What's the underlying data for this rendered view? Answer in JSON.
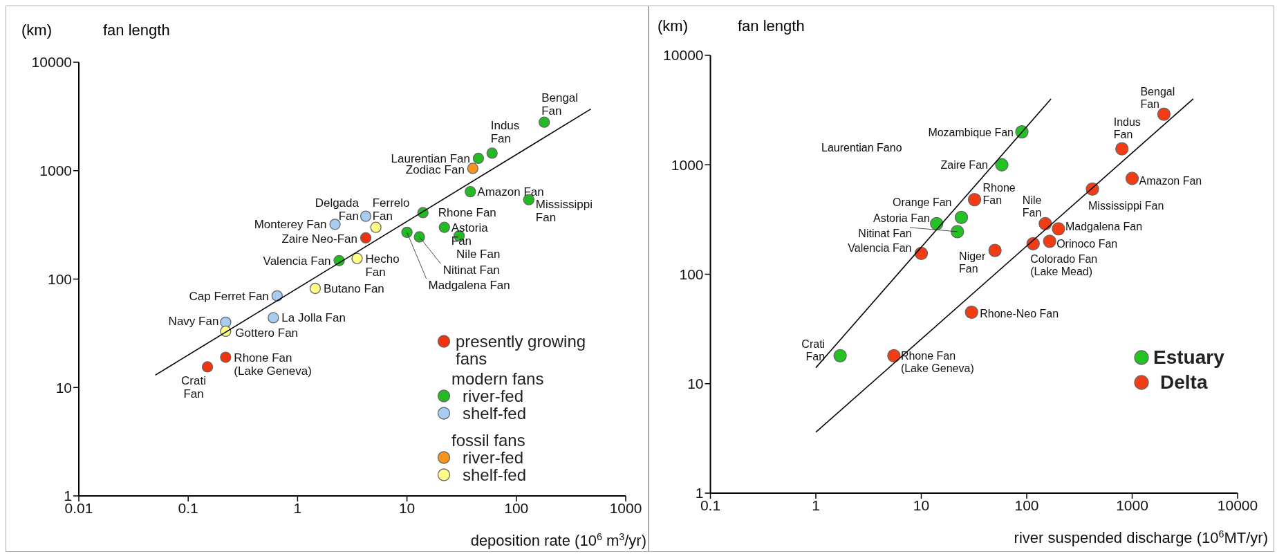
{
  "chart_data": [
    {
      "type": "scatter",
      "title": "fan length",
      "ylabel": "(km)",
      "xlabel": "deposition rate (10$^{6}$ m$^{3}$/yr)",
      "log": "xy",
      "xlim": [
        0.01,
        1000
      ],
      "ylim": [
        1,
        10000
      ],
      "xticks": [
        0.01,
        0.1,
        1,
        10,
        100,
        1000
      ],
      "yticks": [
        1,
        10,
        100,
        1000,
        10000
      ],
      "marker": "circle",
      "legend": "bottom right",
      "series": [
        {
          "name": "presently growing fans",
          "color": "#ee3311",
          "x": [
            4.2,
            0.22,
            0.15
          ],
          "values": [
            240,
            19,
            15.5
          ]
        },
        {
          "name": "river-fed",
          "color": "#22bb22",
          "x": [
            180,
            60,
            45,
            38,
            130,
            14,
            22,
            30,
            10,
            13,
            2.4
          ],
          "values": [
            2800,
            1450,
            1300,
            640,
            540,
            410,
            300,
            250,
            270,
            245,
            148
          ]
        },
        {
          "name": "shelf-fed",
          "color": "#a8cdf0",
          "x": [
            4.2,
            2.2,
            0.65,
            0.22,
            0.6
          ],
          "values": [
            380,
            320,
            70,
            40,
            44
          ]
        },
        {
          "name": "river-fed",
          "color": "#f7941d",
          "x": [
            40
          ],
          "values": [
            1050
          ]
        },
        {
          "name": "shelf-fed",
          "color": "#ffff88",
          "x": [
            5.2,
            3.5,
            1.45,
            0.22
          ],
          "values": [
            300,
            155,
            82,
            33
          ]
        },
        {
          "type": "line",
          "marker": "none",
          "color": "#000000",
          "x": [
            0.05,
            480
          ],
          "values": [
            13,
            3700
          ]
        }
      ],
      "annotations": [
        "modern fans",
        "fossil fans",
        {
          "text": "Bengal\nFan",
          "x": 180,
          "y": 2800
        },
        {
          "text": "Indus\nFan",
          "x": 60,
          "y": 1450
        },
        {
          "text": "Laurentian Fan",
          "x": 45,
          "y": 1300
        },
        {
          "text": "Zodiac Fan",
          "x": 40,
          "y": 1050
        },
        {
          "text": "Amazon Fan",
          "x": 38,
          "y": 640
        },
        {
          "text": "Mississippi\nFan",
          "x": 130,
          "y": 540
        },
        {
          "text": "Rhone Fan",
          "x": 14,
          "y": 410
        },
        {
          "text": "Astoria\nFan",
          "x": 22,
          "y": 300
        },
        {
          "text": "Nile Fan",
          "x": 30,
          "y": 250
        },
        {
          "text": "Madgalena Fan",
          "x": 10,
          "y": 270
        },
        {
          "text": "Nitinat Fan",
          "x": 13,
          "y": 245
        },
        {
          "text": "Delgada\nFan",
          "x": 4.2,
          "y": 380
        },
        {
          "text": "Ferrelo\nFan",
          "x": 5.2,
          "y": 300
        },
        {
          "text": "Monterey Fan",
          "x": 2.2,
          "y": 320
        },
        {
          "text": "Zaire Neo-Fan",
          "x": 4.2,
          "y": 240
        },
        {
          "text": "Valencia Fan",
          "x": 2.4,
          "y": 148
        },
        {
          "text": "Hecho\nFan",
          "x": 3.5,
          "y": 155
        },
        {
          "text": "Cap Ferret Fan",
          "x": 0.65,
          "y": 70
        },
        {
          "text": "Butano Fan",
          "x": 1.45,
          "y": 82
        },
        {
          "text": "Navy Fan",
          "x": 0.22,
          "y": 40
        },
        {
          "text": "La Jolla Fan",
          "x": 0.6,
          "y": 44
        },
        {
          "text": "Gottero Fan",
          "x": 0.22,
          "y": 33
        },
        {
          "text": "Rhone Fan\n(Lake Geneva)",
          "x": 0.22,
          "y": 19
        },
        {
          "text": "Crati\nFan",
          "x": 0.15,
          "y": 15.5
        }
      ]
    },
    {
      "type": "scatter",
      "title": "fan length",
      "ylabel": "(km)",
      "xlabel": "river suspended discharge (10$^{6}$MT/yr)",
      "log": "xy",
      "xlim": [
        0.1,
        10000
      ],
      "ylim": [
        1,
        10000
      ],
      "xticks": [
        0.1,
        1,
        10,
        100,
        1000,
        10000
      ],
      "yticks": [
        1,
        10,
        100,
        1000,
        10000
      ],
      "marker": "circle",
      "legend": "right",
      "series": [
        {
          "name": "Estuary",
          "color": "#22c322",
          "x": [
            90,
            58,
            24,
            14,
            22,
            1.7
          ],
          "values": [
            2000,
            1000,
            330,
            290,
            245,
            18
          ]
        },
        {
          "name": "Delta",
          "color": "#f23c14",
          "x": [
            32,
            10,
            50,
            115,
            165,
            150,
            200,
            420,
            1000,
            800,
            2000,
            30,
            5.5
          ],
          "values": [
            480,
            155,
            165,
            190,
            200,
            290,
            260,
            600,
            750,
            1400,
            2900,
            45,
            18
          ]
        },
        {
          "type": "line",
          "marker": "none",
          "color": "#000000",
          "x": [
            1,
            170
          ],
          "values": [
            14,
            4000
          ]
        },
        {
          "type": "line",
          "marker": "none",
          "color": "#000000",
          "x": [
            1,
            3800
          ],
          "values": [
            3.6,
            4000
          ]
        }
      ],
      "annotations": [
        "Laurentian Fano",
        {
          "text": "Mozambique Fan",
          "x": 90,
          "y": 2000
        },
        {
          "text": "Zaire Fan",
          "x": 58,
          "y": 1000
        },
        {
          "text": "Rhone\nFan",
          "x": 32,
          "y": 480
        },
        {
          "text": "Orange Fan",
          "x": 24,
          "y": 330
        },
        {
          "text": "Astoria Fan",
          "x": 14,
          "y": 290
        },
        {
          "text": "Nitinat Fan",
          "x": 22,
          "y": 245
        },
        {
          "text": "Valencia Fan",
          "x": 10,
          "y": 155
        },
        {
          "text": "Niger\nFan",
          "x": 50,
          "y": 165
        },
        {
          "text": "Colorado Fan\n(Lake Mead)",
          "x": 115,
          "y": 190
        },
        {
          "text": "Orinoco Fan",
          "x": 165,
          "y": 200
        },
        {
          "text": "Nile\nFan",
          "x": 150,
          "y": 290
        },
        {
          "text": "Madgalena Fan",
          "x": 200,
          "y": 260
        },
        {
          "text": "Mississippi Fan",
          "x": 420,
          "y": 600
        },
        {
          "text": "Amazon Fan",
          "x": 1000,
          "y": 750
        },
        {
          "text": "Indus\nFan",
          "x": 800,
          "y": 1400
        },
        {
          "text": "Bengal\nFan",
          "x": 2000,
          "y": 2900
        },
        {
          "text": "Rhone-Neo Fan",
          "x": 30,
          "y": 45
        },
        {
          "text": "Crati\nFan",
          "x": 1.7,
          "y": 18
        },
        {
          "text": "Rhone Fan\n(Lake Geneva)",
          "x": 5.5,
          "y": 18
        }
      ]
    }
  ]
}
